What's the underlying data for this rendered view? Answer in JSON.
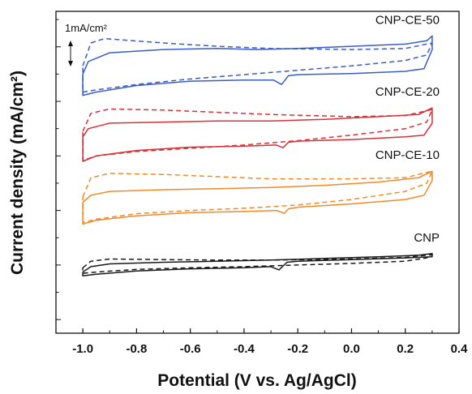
{
  "chart_data": {
    "type": "line",
    "title": "",
    "xlabel": "Potential (V vs. Ag/AgCl)",
    "ylabel": "Current density (mA/cm²)",
    "xlim": [
      -1.1,
      0.4
    ],
    "x_ticks": [
      "-1.0",
      "-0.8",
      "-0.6",
      "-0.4",
      "-0.2",
      "0.0",
      "0.2",
      "0.4"
    ],
    "y_ticks_labeled": false,
    "scale_bar": {
      "label": "1mA/cm²",
      "value": 1
    },
    "legend": "curve labels placed beside each trace",
    "series": [
      {
        "name": "CNP-CE-50",
        "color": "#3a5cc4",
        "offset": 3.7,
        "solid": {
          "upper": [
            [
              -1.0,
              1.05
            ],
            [
              -0.98,
              1.28
            ],
            [
              -0.9,
              1.44
            ],
            [
              -0.7,
              1.5
            ],
            [
              -0.5,
              1.52
            ],
            [
              -0.35,
              1.5
            ],
            [
              -0.2,
              1.52
            ],
            [
              0.0,
              1.56
            ],
            [
              0.2,
              1.6
            ],
            [
              0.28,
              1.66
            ],
            [
              0.3,
              1.75
            ]
          ],
          "lower": [
            [
              0.3,
              1.75
            ],
            [
              0.3,
              1.5
            ],
            [
              0.27,
              1.15
            ],
            [
              0.2,
              1.1
            ],
            [
              0.0,
              1.06
            ],
            [
              -0.2,
              1.04
            ],
            [
              -0.235,
              1.02
            ],
            [
              -0.26,
              0.86
            ],
            [
              -0.29,
              0.94
            ],
            [
              -0.4,
              0.94
            ],
            [
              -0.6,
              0.92
            ],
            [
              -0.8,
              0.84
            ],
            [
              -0.95,
              0.72
            ],
            [
              -1.0,
              0.66
            ],
            [
              -1.0,
              1.05
            ]
          ]
        },
        "dashed": {
          "upper": [
            [
              -1.0,
              1.2
            ],
            [
              -0.97,
              1.62
            ],
            [
              -0.92,
              1.7
            ],
            [
              -0.7,
              1.62
            ],
            [
              -0.5,
              1.56
            ],
            [
              -0.3,
              1.52
            ],
            [
              0.0,
              1.5
            ],
            [
              0.2,
              1.52
            ],
            [
              0.3,
              1.62
            ]
          ],
          "lower": [
            [
              0.3,
              1.62
            ],
            [
              0.28,
              1.4
            ],
            [
              0.2,
              1.3
            ],
            [
              0.0,
              1.2
            ],
            [
              -0.2,
              1.12
            ],
            [
              -0.4,
              1.04
            ],
            [
              -0.6,
              0.96
            ],
            [
              -0.8,
              0.86
            ],
            [
              -0.95,
              0.76
            ],
            [
              -1.0,
              0.72
            ],
            [
              -1.0,
              1.2
            ]
          ]
        }
      },
      {
        "name": "CNP-CE-20",
        "color": "#d93038",
        "offset": 2.55,
        "solid": {
          "upper": [
            [
              -1.0,
              1.05
            ],
            [
              -0.98,
              1.2
            ],
            [
              -0.9,
              1.3
            ],
            [
              -0.7,
              1.32
            ],
            [
              -0.5,
              1.34
            ],
            [
              -0.3,
              1.34
            ],
            [
              -0.1,
              1.37
            ],
            [
              0.1,
              1.42
            ],
            [
              0.25,
              1.46
            ],
            [
              0.3,
              1.58
            ]
          ],
          "lower": [
            [
              0.3,
              1.58
            ],
            [
              0.3,
              1.3
            ],
            [
              0.27,
              1.08
            ],
            [
              0.2,
              1.05
            ],
            [
              0.0,
              1.0
            ],
            [
              -0.2,
              0.97
            ],
            [
              -0.235,
              0.95
            ],
            [
              -0.255,
              0.85
            ],
            [
              -0.28,
              0.9
            ],
            [
              -0.4,
              0.88
            ],
            [
              -0.6,
              0.86
            ],
            [
              -0.8,
              0.8
            ],
            [
              -0.95,
              0.7
            ],
            [
              -1.0,
              0.6
            ],
            [
              -1.0,
              1.05
            ]
          ]
        },
        "dashed": {
          "upper": [
            [
              -1.0,
              1.15
            ],
            [
              -0.97,
              1.48
            ],
            [
              -0.9,
              1.56
            ],
            [
              -0.7,
              1.54
            ],
            [
              -0.5,
              1.5
            ],
            [
              -0.3,
              1.46
            ],
            [
              0.0,
              1.42
            ],
            [
              0.2,
              1.44
            ],
            [
              0.3,
              1.55
            ]
          ],
          "lower": [
            [
              0.3,
              1.55
            ],
            [
              0.28,
              1.32
            ],
            [
              0.2,
              1.2
            ],
            [
              0.0,
              1.08
            ],
            [
              -0.2,
              0.98
            ],
            [
              -0.4,
              0.9
            ],
            [
              -0.6,
              0.84
            ],
            [
              -0.8,
              0.78
            ],
            [
              -0.95,
              0.7
            ],
            [
              -1.0,
              0.62
            ],
            [
              -1.0,
              1.15
            ]
          ]
        }
      },
      {
        "name": "CNP-CE-10",
        "color": "#f08a2a",
        "offset": 1.35,
        "solid": {
          "upper": [
            [
              -1.0,
              1.05
            ],
            [
              -0.97,
              1.18
            ],
            [
              -0.9,
              1.25
            ],
            [
              -0.7,
              1.28
            ],
            [
              -0.5,
              1.3
            ],
            [
              -0.3,
              1.32
            ],
            [
              -0.1,
              1.36
            ],
            [
              0.1,
              1.42
            ],
            [
              0.25,
              1.5
            ],
            [
              0.3,
              1.62
            ]
          ],
          "lower": [
            [
              0.3,
              1.62
            ],
            [
              0.3,
              1.45
            ],
            [
              0.27,
              1.18
            ],
            [
              0.2,
              1.1
            ],
            [
              0.0,
              1.02
            ],
            [
              -0.2,
              0.96
            ],
            [
              -0.235,
              0.93
            ],
            [
              -0.25,
              0.85
            ],
            [
              -0.28,
              0.9
            ],
            [
              -0.4,
              0.88
            ],
            [
              -0.6,
              0.86
            ],
            [
              -0.8,
              0.8
            ],
            [
              -0.95,
              0.72
            ],
            [
              -1.0,
              0.65
            ],
            [
              -1.0,
              1.05
            ]
          ]
        },
        "dashed": {
          "upper": [
            [
              -1.0,
              1.15
            ],
            [
              -0.97,
              1.5
            ],
            [
              -0.9,
              1.58
            ],
            [
              -0.7,
              1.56
            ],
            [
              -0.5,
              1.52
            ],
            [
              -0.3,
              1.48
            ],
            [
              0.0,
              1.48
            ],
            [
              0.2,
              1.5
            ],
            [
              0.3,
              1.62
            ]
          ],
          "lower": [
            [
              0.3,
              1.62
            ],
            [
              0.28,
              1.4
            ],
            [
              0.2,
              1.25
            ],
            [
              0.0,
              1.1
            ],
            [
              -0.2,
              1.0
            ],
            [
              -0.4,
              0.94
            ],
            [
              -0.6,
              0.9
            ],
            [
              -0.8,
              0.84
            ],
            [
              -0.95,
              0.74
            ],
            [
              -1.0,
              0.68
            ],
            [
              -1.0,
              1.15
            ]
          ]
        }
      },
      {
        "name": "CNP",
        "color": "#1a1a1a",
        "offset": 0.0,
        "solid": {
          "upper": [
            [
              -1.0,
              1.12
            ],
            [
              -0.97,
              1.22
            ],
            [
              -0.9,
              1.27
            ],
            [
              -0.7,
              1.3
            ],
            [
              -0.5,
              1.32
            ],
            [
              -0.3,
              1.34
            ],
            [
              -0.1,
              1.37
            ],
            [
              0.1,
              1.4
            ],
            [
              0.25,
              1.43
            ],
            [
              0.3,
              1.46
            ]
          ],
          "lower": [
            [
              0.3,
              1.46
            ],
            [
              0.3,
              1.4
            ],
            [
              0.2,
              1.38
            ],
            [
              0.0,
              1.35
            ],
            [
              -0.2,
              1.32
            ],
            [
              -0.24,
              1.3
            ],
            [
              -0.27,
              1.16
            ],
            [
              -0.3,
              1.22
            ],
            [
              -0.4,
              1.2
            ],
            [
              -0.6,
              1.18
            ],
            [
              -0.8,
              1.14
            ],
            [
              -0.95,
              1.08
            ],
            [
              -1.0,
              1.05
            ],
            [
              -1.0,
              1.12
            ]
          ]
        },
        "dashed": {
          "upper": [
            [
              -1.0,
              1.2
            ],
            [
              -0.97,
              1.32
            ],
            [
              -0.9,
              1.36
            ],
            [
              -0.7,
              1.35
            ],
            [
              -0.5,
              1.34
            ],
            [
              -0.3,
              1.34
            ],
            [
              0.0,
              1.36
            ],
            [
              0.2,
              1.39
            ],
            [
              0.3,
              1.44
            ]
          ],
          "lower": [
            [
              0.3,
              1.44
            ],
            [
              0.28,
              1.38
            ],
            [
              0.2,
              1.32
            ],
            [
              0.0,
              1.28
            ],
            [
              -0.2,
              1.25
            ],
            [
              -0.4,
              1.22
            ],
            [
              -0.6,
              1.2
            ],
            [
              -0.8,
              1.17
            ],
            [
              -0.95,
              1.12
            ],
            [
              -1.0,
              1.1
            ],
            [
              -1.0,
              1.2
            ]
          ]
        }
      }
    ]
  }
}
